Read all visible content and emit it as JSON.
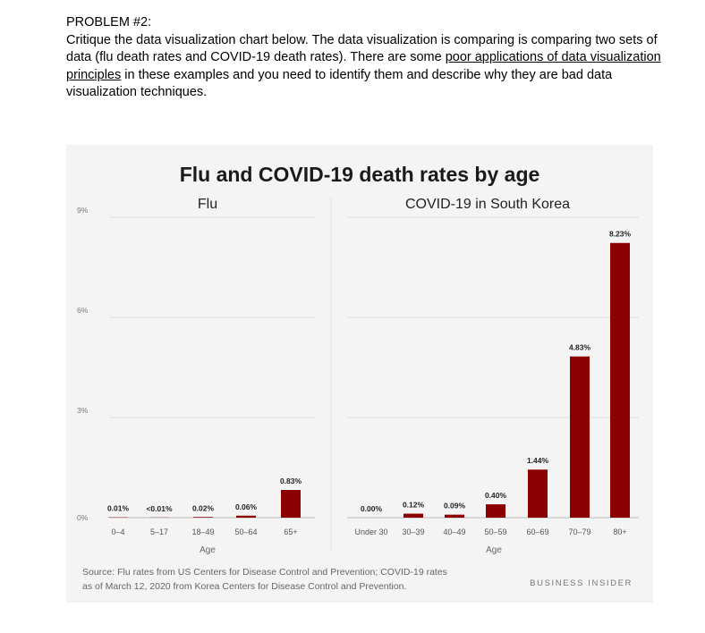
{
  "problem": {
    "heading": "PROBLEM #2:",
    "text_before": "Critique the data visualization chart below.  The data visualization is comparing is comparing two sets of data (flu death rates and COVID-19 death rates).  There are some ",
    "underlined": "poor applications of data visualization principles",
    "text_after": " in these examples and you need to identify them and describe why they are bad data visualization techniques."
  },
  "chart_data": {
    "type": "bar",
    "title": "Flu and COVID-19 death rates by age",
    "ylim": [
      0,
      9
    ],
    "yticks": [
      "0%",
      "3%",
      "6%",
      "9%"
    ],
    "grid": true,
    "bar_color": "#8b0000",
    "panels": [
      {
        "title": "Flu",
        "xlabel": "Age",
        "categories": [
          "0–4",
          "5–17",
          "18–49",
          "50–64",
          "65+"
        ],
        "values": [
          0.01,
          0.005,
          0.02,
          0.06,
          0.83
        ],
        "data_labels": [
          "0.01%",
          "<0.01%",
          "0.02%",
          "0.06%",
          "0.83%"
        ]
      },
      {
        "title": "COVID-19 in South Korea",
        "xlabel": "Age",
        "categories": [
          "Under 30",
          "30–39",
          "40–49",
          "50–59",
          "60–69",
          "70–79",
          "80+"
        ],
        "values": [
          0.0,
          0.12,
          0.09,
          0.4,
          1.44,
          4.83,
          8.23
        ],
        "data_labels": [
          "0.00%",
          "0.12%",
          "0.09%",
          "0.40%",
          "1.44%",
          "4.83%",
          "8.23%"
        ]
      }
    ],
    "source_lines": [
      "Source: Flu rates from US Centers for Disease Control and Prevention; COVID-19 rates",
      "as of March 12, 2020 from Korea Centers for Disease Control and Prevention."
    ],
    "brand": "BUSINESS INSIDER"
  }
}
